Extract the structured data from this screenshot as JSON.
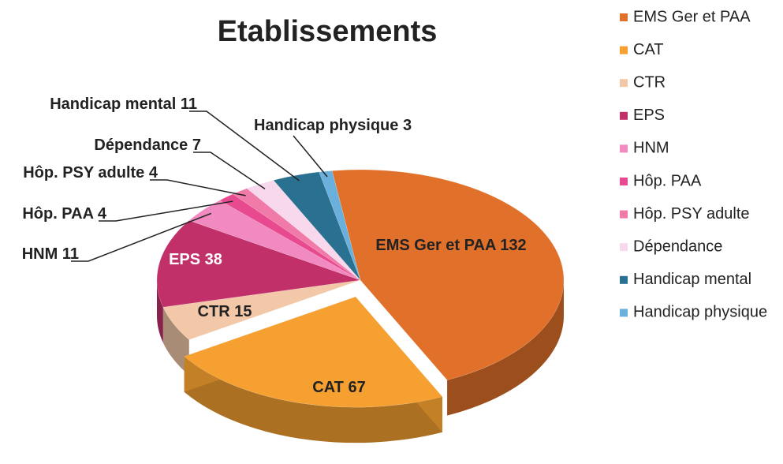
{
  "chart_data": {
    "type": "pie",
    "title": "Etablissements",
    "categories": [
      "EMS Ger et PAA",
      "CAT",
      "CTR",
      "EPS",
      "HNM",
      "Hôp. PAA",
      "Hôp. PSY adulte",
      "Dépendance",
      "Handicap mental",
      "Handicap physique"
    ],
    "values": [
      132,
      67,
      15,
      38,
      11,
      4,
      4,
      7,
      11,
      3
    ],
    "colors": [
      "#e0702a",
      "#f5a030",
      "#f2c8a8",
      "#c2306a",
      "#f08ac0",
      "#e84a90",
      "#f07aa8",
      "#f8d8ec",
      "#2a7090",
      "#6ab0dc"
    ],
    "legend": "right"
  }
}
